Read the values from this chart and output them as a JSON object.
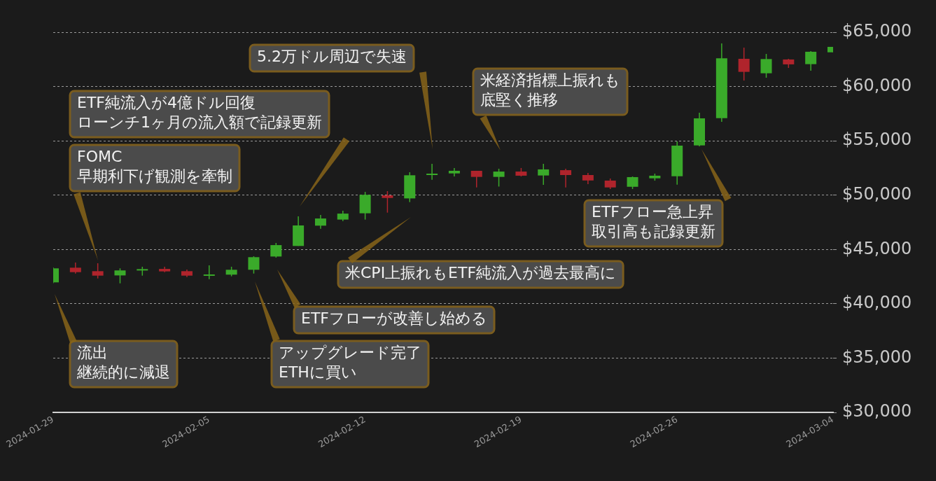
{
  "chart_data": {
    "type": "candlestick",
    "x": [
      "2024-01-29",
      "2024-01-30",
      "2024-01-31",
      "2024-02-01",
      "2024-02-02",
      "2024-02-03",
      "2024-02-04",
      "2024-02-05",
      "2024-02-06",
      "2024-02-07",
      "2024-02-08",
      "2024-02-09",
      "2024-02-10",
      "2024-02-11",
      "2024-02-12",
      "2024-02-13",
      "2024-02-14",
      "2024-02-15",
      "2024-02-16",
      "2024-02-17",
      "2024-02-18",
      "2024-02-19",
      "2024-02-20",
      "2024-02-21",
      "2024-02-22",
      "2024-02-23",
      "2024-02-24",
      "2024-02-25",
      "2024-02-26",
      "2024-02-27",
      "2024-02-28",
      "2024-02-29",
      "2024-03-01",
      "2024-03-02",
      "2024-03-03",
      "2024-03-04"
    ],
    "ohlc": [
      [
        41970,
        43340,
        41900,
        43260
      ],
      [
        43320,
        43790,
        42780,
        42910
      ],
      [
        43000,
        43730,
        42330,
        42590
      ],
      [
        42610,
        43260,
        41880,
        43070
      ],
      [
        43130,
        43410,
        42590,
        43190
      ],
      [
        43210,
        43410,
        42900,
        42980
      ],
      [
        43000,
        43150,
        42460,
        42590
      ],
      [
        42590,
        43540,
        42270,
        42700
      ],
      [
        42680,
        43410,
        42530,
        43130
      ],
      [
        43130,
        44370,
        42780,
        44290
      ],
      [
        44350,
        45600,
        44250,
        45400
      ],
      [
        45320,
        48050,
        45320,
        47210
      ],
      [
        47190,
        48180,
        46910,
        47850
      ],
      [
        47750,
        48560,
        47620,
        48300
      ],
      [
        48330,
        50300,
        47750,
        50030
      ],
      [
        49980,
        50370,
        48390,
        49740
      ],
      [
        49700,
        52110,
        49360,
        51830
      ],
      [
        51870,
        52880,
        51420,
        51980
      ],
      [
        52000,
        52500,
        51720,
        52240
      ],
      [
        52240,
        52240,
        50710,
        51680
      ],
      [
        51680,
        52430,
        50790,
        52170
      ],
      [
        52170,
        52500,
        51720,
        51790
      ],
      [
        51810,
        52880,
        50950,
        52370
      ],
      [
        52300,
        52430,
        50710,
        51850
      ],
      [
        51850,
        52040,
        51010,
        51350
      ],
      [
        51340,
        51530,
        50560,
        50710
      ],
      [
        50770,
        51720,
        50560,
        51660
      ],
      [
        51550,
        51980,
        51340,
        51790
      ],
      [
        51740,
        54950,
        50970,
        54560
      ],
      [
        54580,
        57590,
        54500,
        57070
      ],
      [
        57090,
        63970,
        56750,
        62600
      ],
      [
        62550,
        63580,
        60550,
        61350
      ],
      [
        61220,
        63000,
        60810,
        62530
      ],
      [
        62490,
        62550,
        61710,
        62040
      ],
      [
        62060,
        63260,
        61450,
        63200
      ],
      [
        63150,
        63650,
        63150,
        63650
      ]
    ],
    "colors": [
      "#3aaa2a",
      "#b0242c",
      "#b0242c",
      "#3aaa2a",
      "#3aaa2a",
      "#b0242c",
      "#b0242c",
      "#3aaa2a",
      "#3aaa2a",
      "#3aaa2a",
      "#3aaa2a",
      "#3aaa2a",
      "#3aaa2a",
      "#3aaa2a",
      "#3aaa2a",
      "#b0242c",
      "#3aaa2a",
      "#3aaa2a",
      "#3aaa2a",
      "#b0242c",
      "#3aaa2a",
      "#b0242c",
      "#3aaa2a",
      "#b0242c",
      "#b0242c",
      "#b0242c",
      "#3aaa2a",
      "#3aaa2a",
      "#3aaa2a",
      "#3aaa2a",
      "#3aaa2a",
      "#b0242c",
      "#3aaa2a",
      "#b0242c",
      "#3aaa2a",
      "#3aaa2a"
    ],
    "xlim": [
      "2024-01-29",
      "2024-03-04"
    ],
    "xticks": [
      "2024-01-29",
      "2024-02-05",
      "2024-02-12",
      "2024-02-19",
      "2024-02-26",
      "2024-03-04"
    ],
    "ylim": [
      30000,
      65000
    ],
    "yticks": [
      {
        "value": 30000,
        "label": "$30,000"
      },
      {
        "value": 35000,
        "label": "$35,000"
      },
      {
        "value": 40000,
        "label": "$40,000"
      },
      {
        "value": 45000,
        "label": "$45,000"
      },
      {
        "value": 50000,
        "label": "$50,000"
      },
      {
        "value": 55000,
        "label": "$55,000"
      },
      {
        "value": 60000,
        "label": "$60,000"
      },
      {
        "value": 65000,
        "label": "$65,000"
      }
    ],
    "grid": "y",
    "legend": false,
    "annotations": [
      "流出継続的に減退",
      "FOMC早期利下げ観測を牽制",
      "ETF純流入が4億ドル回復ローンチ1ヶ月の流入額で記録更新",
      "5.2万ドル周辺で失速",
      "米経済指標上振れも底堅く推移",
      "ETFフロー急上昇取引高も記録更新",
      "米CPI上振れもETF純流入が過去最高に",
      "ETFフローが改善し始める",
      "アップグレード完了ETHに買い"
    ]
  }
}
